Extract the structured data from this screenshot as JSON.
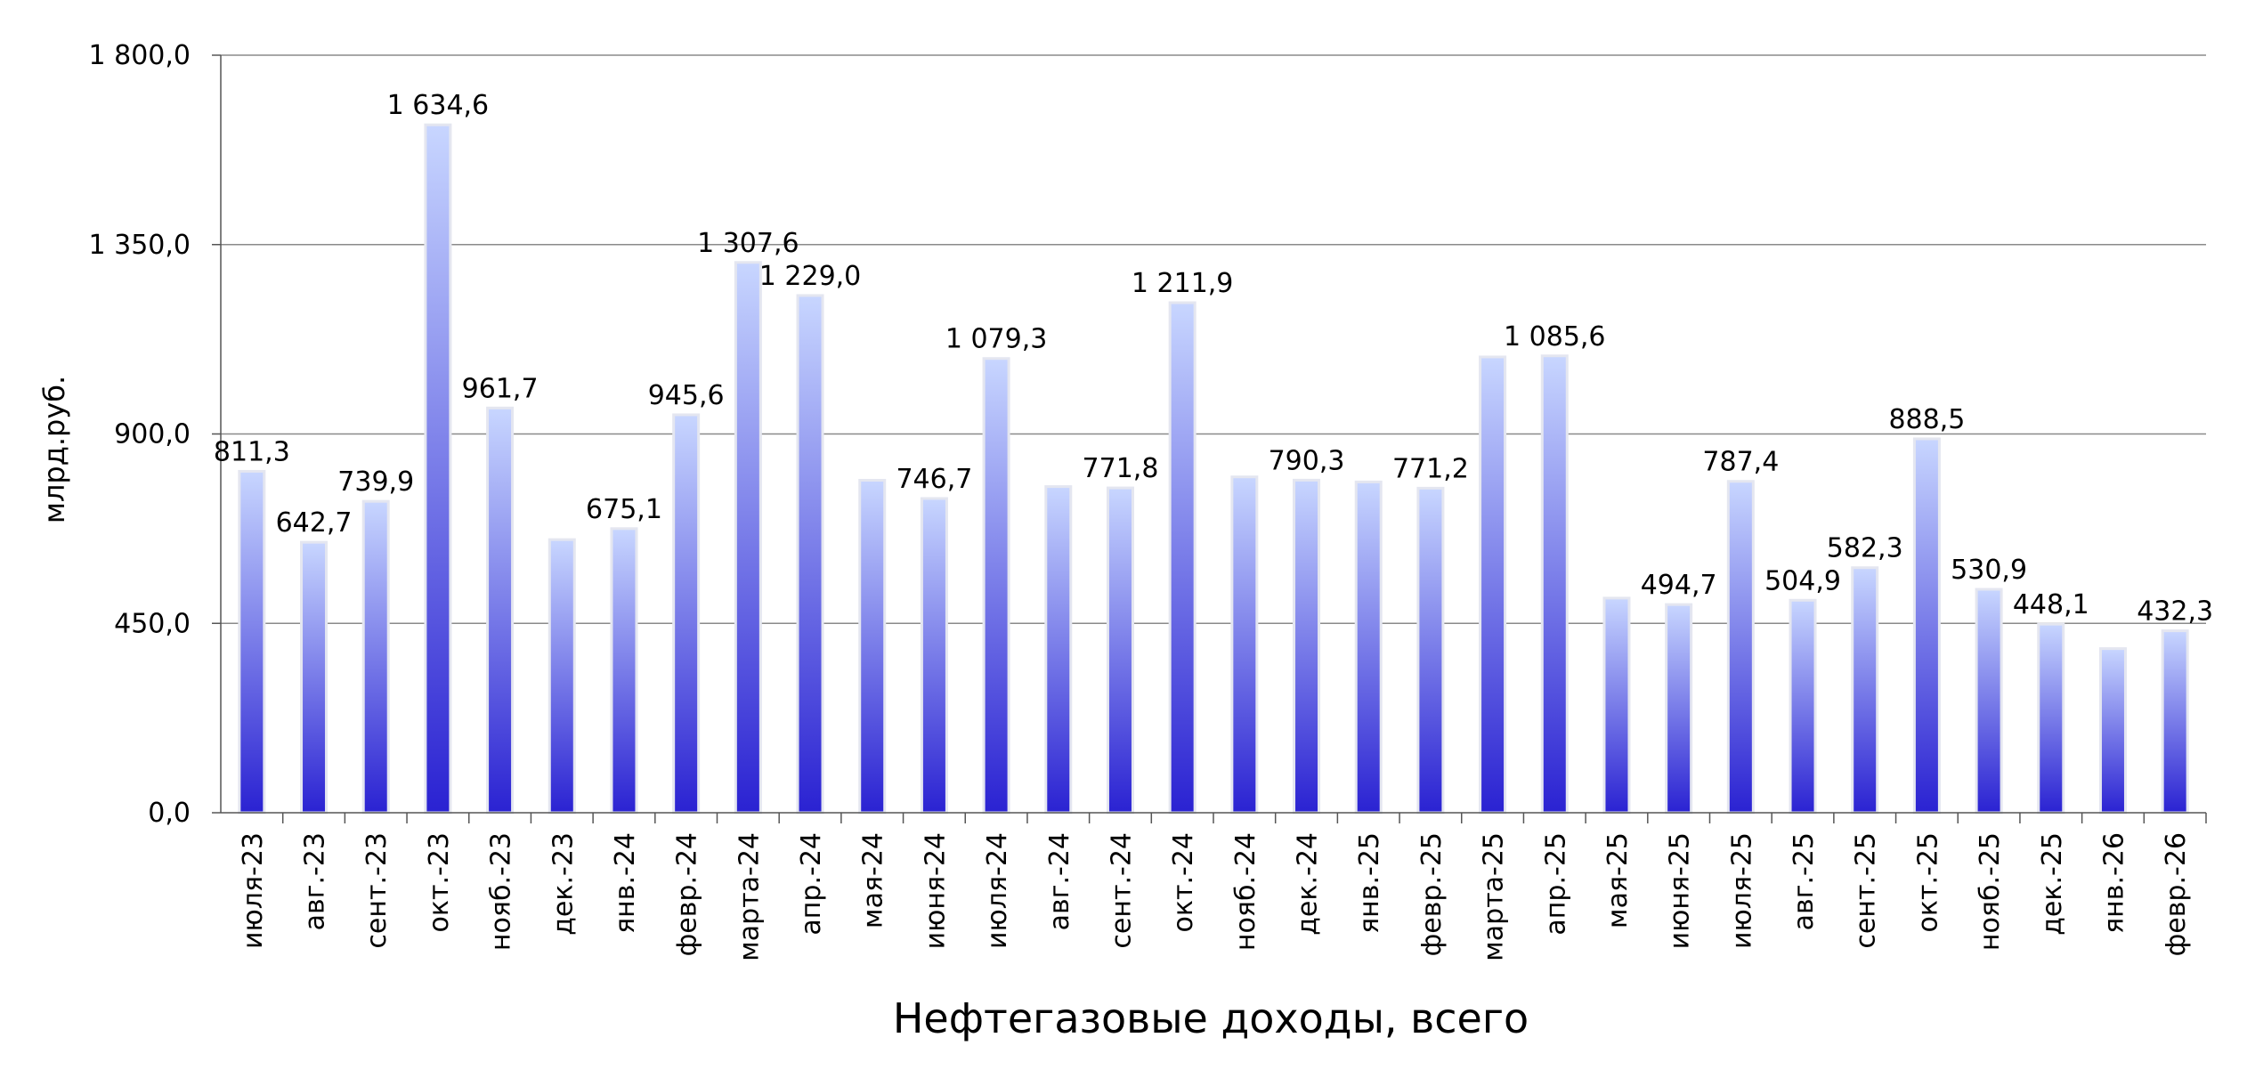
{
  "chart_data": {
    "type": "bar",
    "title": "Нефтегазовые доходы, всего",
    "xlabel": "",
    "ylabel": "млрд.руб.",
    "ylim": [
      0,
      1800
    ],
    "yticks": [
      "0,0",
      "450,0",
      "900,0",
      "1 350,0",
      "1 800,0"
    ],
    "ytick_values": [
      0,
      450,
      900,
      1350,
      1800
    ],
    "grid": true,
    "legend": "none",
    "categories": [
      "июля-23",
      "авг.-23",
      "сент.-23",
      "окт.-23",
      "нояб.-23",
      "дек.-23",
      "янв.-24",
      "февр.-24",
      "марта-24",
      "апр.-24",
      "мая-24",
      "июня-24",
      "июля-24",
      "авг.-24",
      "сент.-24",
      "окт.-24",
      "нояб.-24",
      "дек.-24",
      "янв.-25",
      "февр.-25",
      "марта-25",
      "апр.-25",
      "мая-25",
      "июня-25",
      "июля-25",
      "авг.-25",
      "сент.-25",
      "окт.-25",
      "нояб.-25",
      "дек.-25",
      "янв.-26",
      "февр.-26"
    ],
    "values": [
      811.3,
      642.7,
      739.9,
      1634.6,
      961.7,
      649,
      675.1,
      945.6,
      1307.6,
      1229.0,
      790,
      746.7,
      1079.3,
      775,
      771.8,
      1211.9,
      798,
      790.3,
      786,
      771.2,
      1083,
      1085.6,
      510,
      494.7,
      787.4,
      504.9,
      582.3,
      888.5,
      530.9,
      448.1,
      390,
      432.3
    ],
    "data_labels": [
      "811,3",
      "642,7",
      "739,9",
      "1 634,6",
      "961,7",
      "",
      "675,1",
      "945,6",
      "1 307,6",
      "1 229,0",
      "",
      "746,7",
      "1 079,3",
      "",
      "771,8",
      "1 211,9",
      "",
      "790,3",
      "",
      "771,2",
      "",
      "1 085,6",
      "",
      "494,7",
      "787,4",
      "504,9",
      "582,3",
      "888,5",
      "530,9",
      "448,1",
      "",
      "432,3"
    ],
    "colors": {
      "bar_top": "#c8d6ff",
      "bar_bottom": "#2a22d2",
      "bar_edge": "#e4e6f0",
      "grid": "#8a8a8a",
      "axis": "#555555"
    }
  }
}
